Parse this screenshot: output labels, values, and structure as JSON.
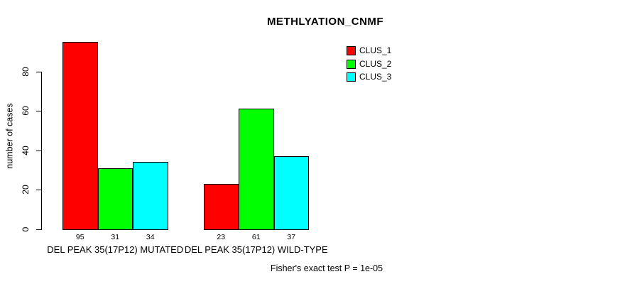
{
  "title": "METHLYATION_CNMF",
  "ylabel": "number of cases",
  "footnote": "Fisher's exact test P = 1e-05",
  "chart_data": {
    "type": "bar",
    "title": "METHLYATION_CNMF",
    "xlabel": "",
    "ylabel": "number of cases",
    "groups": [
      "DEL PEAK 35(17P12) MUTATED",
      "DEL PEAK 35(17P12) WILD-TYPE"
    ],
    "series": [
      {
        "name": "CLUS_1",
        "color": "#ff0000",
        "values": [
          95,
          23
        ]
      },
      {
        "name": "CLUS_2",
        "color": "#00ff00",
        "values": [
          31,
          61
        ]
      },
      {
        "name": "CLUS_3",
        "color": "#00ffff",
        "values": [
          34,
          37
        ]
      }
    ],
    "value_labels": [
      [
        95,
        31,
        34
      ],
      [
        23,
        61,
        37
      ]
    ],
    "yticks": [
      0,
      20,
      40,
      60,
      80
    ],
    "ylim": [
      0,
      95
    ],
    "grid": false,
    "legend_position": "top-right",
    "bar_border_color": "#000000",
    "annotation": "Fisher's exact test P = 1e-05"
  }
}
